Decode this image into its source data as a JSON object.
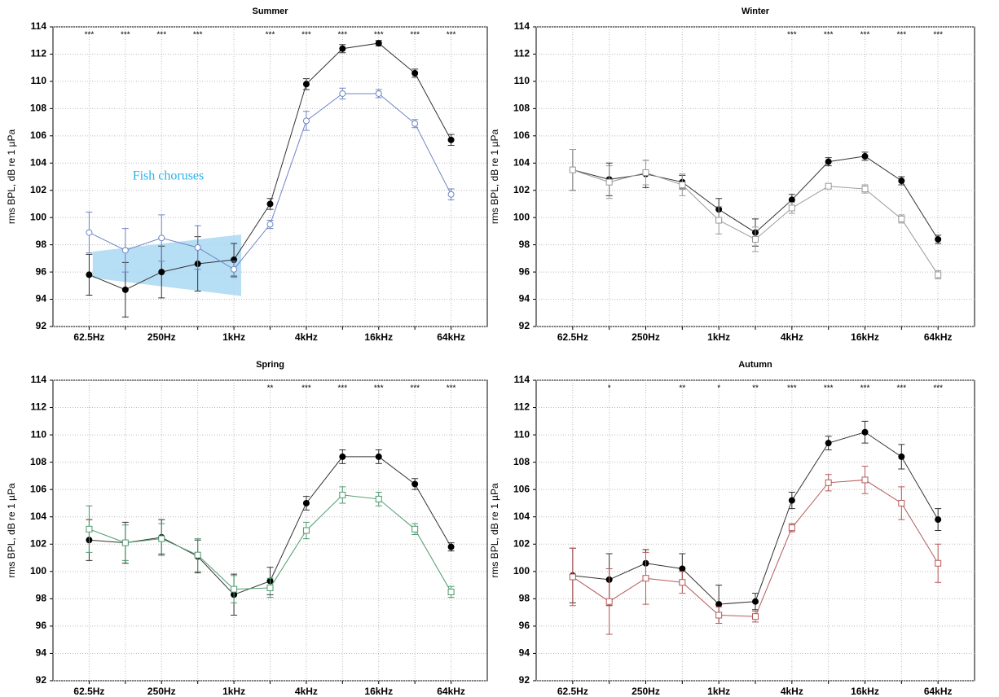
{
  "chart_data": [
    {
      "type": "line",
      "title": "Summer",
      "y_label": "rms BPL, dB re 1 µPa",
      "categories": [
        "62.5Hz",
        null,
        "250Hz",
        null,
        "1kHz",
        null,
        "4kHz",
        null,
        "16kHz",
        null,
        "64kHz"
      ],
      "ylim": [
        92,
        114
      ],
      "yticks": [
        92,
        94,
        96,
        98,
        100,
        102,
        104,
        106,
        108,
        110,
        112,
        114
      ],
      "grid": true,
      "significance": [
        "***",
        "***",
        "***",
        "***",
        null,
        "***",
        "***",
        "***",
        "***",
        "***",
        "***"
      ],
      "annotation": "Fish choruses",
      "series": [
        {
          "color": "#000000",
          "marker": "circle",
          "filled": true,
          "values": [
            95.8,
            94.7,
            96.0,
            96.6,
            96.9,
            101.0,
            109.8,
            112.4,
            112.8,
            110.6,
            105.7
          ],
          "errors": [
            1.5,
            2.0,
            1.9,
            2.0,
            1.2,
            0.4,
            0.4,
            0.3,
            0.2,
            0.3,
            0.4
          ]
        },
        {
          "color": "#6f86c4",
          "marker": "circle",
          "filled": false,
          "values": [
            98.9,
            97.6,
            98.5,
            97.8,
            96.2,
            99.5,
            107.1,
            109.1,
            109.1,
            106.9,
            101.7
          ],
          "errors": [
            1.5,
            1.6,
            1.7,
            1.6,
            0.6,
            0.3,
            0.7,
            0.4,
            0.3,
            0.3,
            0.4
          ]
        }
      ]
    },
    {
      "type": "line",
      "title": "Winter",
      "y_label": "rms BPL, dB re 1 µPa",
      "categories": [
        "62.5Hz",
        null,
        "250Hz",
        null,
        "1kHz",
        null,
        "4kHz",
        null,
        "16kHz",
        null,
        "64kHz"
      ],
      "ylim": [
        92,
        114
      ],
      "yticks": [
        92,
        94,
        96,
        98,
        100,
        102,
        104,
        106,
        108,
        110,
        112,
        114
      ],
      "grid": true,
      "significance": [
        null,
        null,
        null,
        null,
        null,
        null,
        "***",
        "***",
        "***",
        "***",
        "***"
      ],
      "series": [
        {
          "color": "#000000",
          "marker": "circle",
          "filled": true,
          "values": [
            103.5,
            102.8,
            103.2,
            102.6,
            100.6,
            98.9,
            101.3,
            104.1,
            104.5,
            102.7,
            98.4
          ],
          "errors": [
            1.5,
            1.2,
            1.0,
            0.5,
            0.8,
            1.0,
            0.4,
            0.3,
            0.3,
            0.3,
            0.3
          ]
        },
        {
          "color": "#9a9a9a",
          "marker": "square",
          "filled": false,
          "values": [
            103.5,
            102.6,
            103.3,
            102.4,
            99.8,
            98.4,
            100.7,
            102.3,
            102.1,
            99.9,
            95.8
          ],
          "errors": [
            1.5,
            1.2,
            0.9,
            0.8,
            1.0,
            0.9,
            0.4,
            0.2,
            0.3,
            0.3,
            0.3
          ]
        }
      ]
    },
    {
      "type": "line",
      "title": "Spring",
      "y_label": "rms BPL, dB re 1 µPa",
      "categories": [
        "62.5Hz",
        null,
        "250Hz",
        null,
        "1kHz",
        null,
        "4kHz",
        null,
        "16kHz",
        null,
        "64kHz"
      ],
      "ylim": [
        92,
        114
      ],
      "yticks": [
        92,
        94,
        96,
        98,
        100,
        102,
        104,
        106,
        108,
        110,
        112,
        114
      ],
      "grid": true,
      "significance": [
        null,
        null,
        null,
        null,
        null,
        "**",
        "***",
        "***",
        "***",
        "***",
        "***"
      ],
      "series": [
        {
          "color": "#000000",
          "marker": "circle",
          "filled": true,
          "values": [
            102.3,
            102.1,
            102.5,
            101.1,
            98.3,
            99.3,
            105.0,
            108.4,
            108.4,
            106.4,
            101.8
          ],
          "errors": [
            1.5,
            1.5,
            1.3,
            1.2,
            1.5,
            1.0,
            0.5,
            0.5,
            0.5,
            0.4,
            0.3
          ]
        },
        {
          "color": "#4e9a6e",
          "marker": "square",
          "filled": false,
          "values": [
            103.1,
            102.1,
            102.4,
            101.2,
            98.7,
            98.8,
            103.0,
            105.6,
            105.3,
            103.1,
            98.5
          ],
          "errors": [
            1.7,
            1.3,
            1.1,
            1.2,
            1.0,
            0.7,
            0.6,
            0.6,
            0.5,
            0.4,
            0.4
          ]
        }
      ]
    },
    {
      "type": "line",
      "title": "Autumn",
      "y_label": "rms BPL, dB re 1 µPa",
      "categories": [
        "62.5Hz",
        null,
        "250Hz",
        null,
        "1kHz",
        null,
        "4kHz",
        null,
        "16kHz",
        null,
        "64kHz"
      ],
      "ylim": [
        92,
        114
      ],
      "yticks": [
        92,
        94,
        96,
        98,
        100,
        102,
        104,
        106,
        108,
        110,
        112,
        114
      ],
      "grid": true,
      "significance": [
        null,
        "*",
        null,
        "**",
        "*",
        "**",
        "***",
        "***",
        "***",
        "***",
        "***"
      ],
      "series": [
        {
          "color": "#000000",
          "marker": "circle",
          "filled": true,
          "values": [
            99.7,
            99.4,
            100.6,
            100.2,
            97.6,
            97.8,
            105.2,
            109.4,
            110.2,
            108.4,
            103.8
          ],
          "errors": [
            2.0,
            1.9,
            1.0,
            1.1,
            1.4,
            0.6,
            0.6,
            0.5,
            0.8,
            0.9,
            0.8
          ]
        },
        {
          "color": "#b5595a",
          "marker": "square",
          "filled": false,
          "values": [
            99.6,
            97.8,
            99.5,
            99.2,
            96.8,
            96.7,
            103.2,
            106.5,
            106.7,
            105.0,
            100.6
          ],
          "errors": [
            2.1,
            2.4,
            1.9,
            0.8,
            0.6,
            0.4,
            0.3,
            0.6,
            1.0,
            1.2,
            1.4
          ]
        }
      ]
    }
  ]
}
